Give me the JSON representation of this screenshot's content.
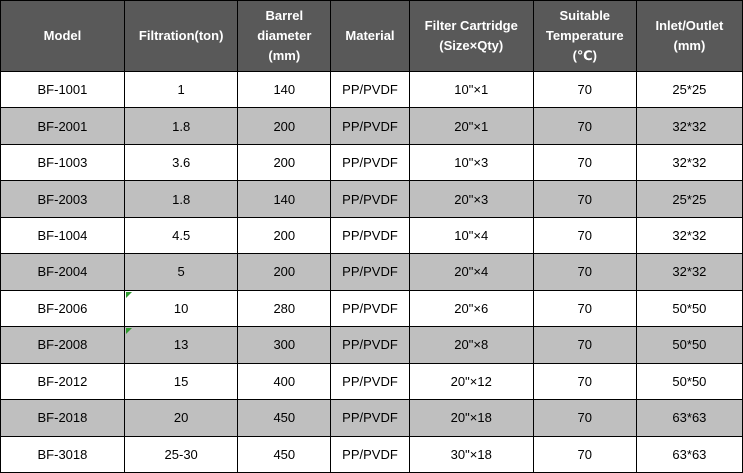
{
  "chart_data": {
    "type": "table",
    "title": "",
    "columns": [
      "Model",
      "Filtration(ton)",
      "Barrel\ndiameter\n(mm)",
      "Material",
      "Filter Cartridge\n(Size×Qty)",
      "Suitable\nTemperature\n(℃)",
      "Inlet/Outlet\n(mm)"
    ],
    "rows": [
      [
        "BF-1001",
        "1",
        "140",
        "PP/PVDF",
        "10\"×1",
        "70",
        "25*25"
      ],
      [
        "BF-2001",
        "1.8",
        "200",
        "PP/PVDF",
        "20\"×1",
        "70",
        "32*32"
      ],
      [
        "BF-1003",
        "3.6",
        "200",
        "PP/PVDF",
        "10\"×3",
        "70",
        "32*32"
      ],
      [
        "BF-2003",
        "1.8",
        "140",
        "PP/PVDF",
        "20\"×3",
        "70",
        "25*25"
      ],
      [
        "BF-1004",
        "4.5",
        "200",
        "PP/PVDF",
        "10\"×4",
        "70",
        "32*32"
      ],
      [
        "BF-2004",
        "5",
        "200",
        "PP/PVDF",
        "20\"×4",
        "70",
        "32*32"
      ],
      [
        "BF-2006",
        "10",
        "280",
        "PP/PVDF",
        "20\"×6",
        "70",
        "50*50"
      ],
      [
        "BF-2008",
        "13",
        "300",
        "PP/PVDF",
        "20\"×8",
        "70",
        "50*50"
      ],
      [
        "BF-2012",
        "15",
        "400",
        "PP/PVDF",
        "20\"×12",
        "70",
        "50*50"
      ],
      [
        "BF-2018",
        "20",
        "450",
        "PP/PVDF",
        "20\"×18",
        "70",
        "63*63"
      ],
      [
        "BF-3018",
        "25-30",
        "450",
        "PP/PVDF",
        "30\"×18",
        "70",
        "63*63"
      ]
    ],
    "flag_cells": [
      [
        6,
        1
      ],
      [
        7,
        1
      ]
    ],
    "layout": {
      "grid": "on",
      "alternating_rows": true
    }
  },
  "colors": {
    "header_bg": "#595959",
    "header_text": "#FFFFFF",
    "row_bg": "#FFFFFF",
    "row_alt_bg": "#BFBFBF",
    "border": "#000000",
    "flag": "#2E9B2E"
  }
}
